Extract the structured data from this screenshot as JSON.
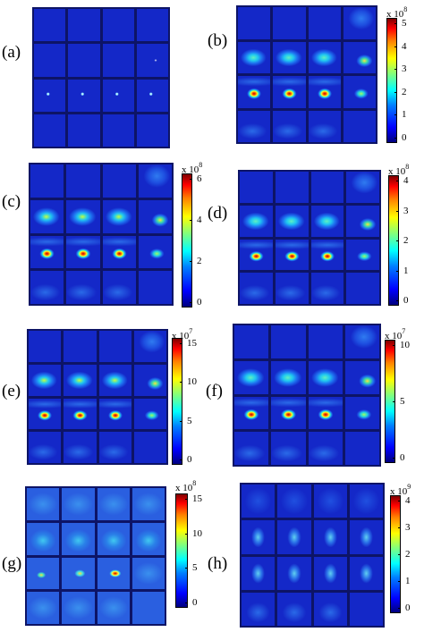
{
  "figure": {
    "panels": [
      {
        "id": "a",
        "label": "(a)",
        "colorbar": null
      },
      {
        "id": "b",
        "label": "(b)",
        "colorbar": {
          "multiplier": "x 10",
          "exponent": "8",
          "ticks": [
            "5",
            "4",
            "3",
            "2",
            "1",
            "0"
          ]
        }
      },
      {
        "id": "c",
        "label": "(c)",
        "colorbar": {
          "multiplier": "x 10",
          "exponent": "8",
          "ticks": [
            "6",
            "4",
            "2",
            "0"
          ]
        }
      },
      {
        "id": "d",
        "label": "(d)",
        "colorbar": {
          "multiplier": "x 10",
          "exponent": "8",
          "ticks": [
            "4",
            "3",
            "2",
            "1",
            "0"
          ]
        }
      },
      {
        "id": "e",
        "label": "(e)",
        "colorbar": {
          "multiplier": "x 10",
          "exponent": "7",
          "ticks": [
            "15",
            "10",
            "5",
            "0"
          ]
        }
      },
      {
        "id": "f",
        "label": "(f)",
        "colorbar": {
          "multiplier": "x 10",
          "exponent": "7",
          "ticks": [
            "10",
            "5",
            "0"
          ]
        }
      },
      {
        "id": "g",
        "label": "(g)",
        "colorbar": {
          "multiplier": "x 10",
          "exponent": "8",
          "ticks": [
            "15",
            "10",
            "5",
            "0"
          ]
        }
      },
      {
        "id": "h",
        "label": "(h)",
        "colorbar": {
          "multiplier": "x 10",
          "exponent": "9",
          "ticks": [
            "4",
            "3",
            "2",
            "1",
            "0"
          ]
        }
      }
    ]
  }
}
